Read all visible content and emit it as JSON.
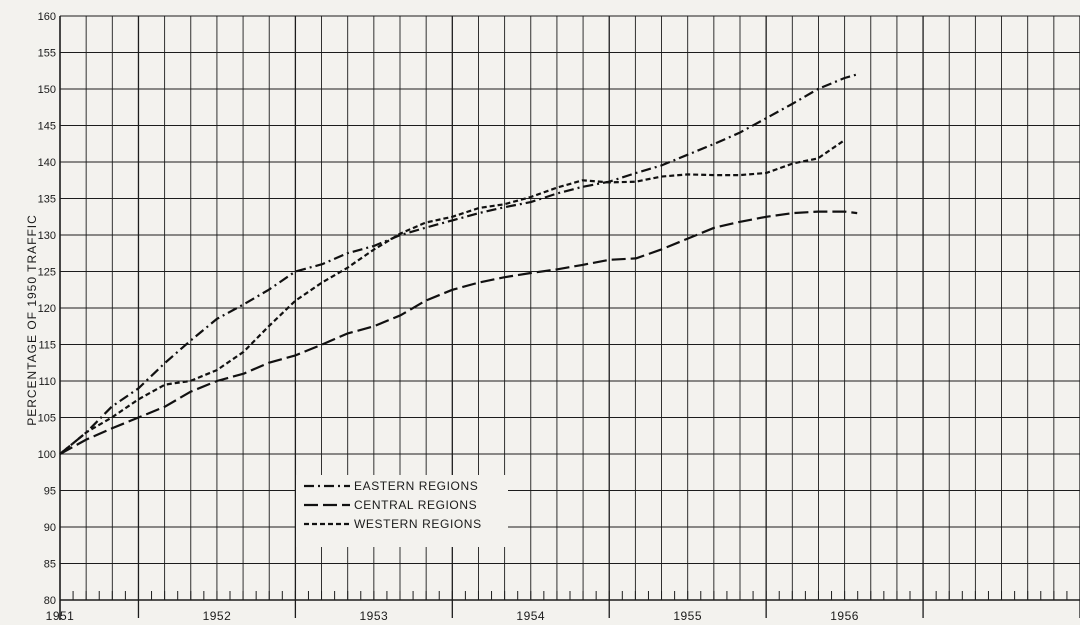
{
  "chart_data": {
    "type": "line",
    "title": "",
    "xlabel": "",
    "ylabel": "PERCENTAGE OF 1950 TRAFFIC",
    "ylim": [
      80,
      160
    ],
    "yticks": [
      "80",
      "85",
      "90",
      "95",
      "100",
      "105",
      "110",
      "115",
      "120",
      "125",
      "130",
      "135",
      "140",
      "145",
      "150",
      "155",
      "160"
    ],
    "xlim": [
      1950.5,
      1957.0
    ],
    "year_labels": [
      "1951",
      "1952",
      "1953",
      "1954",
      "1955",
      "1956"
    ],
    "grid": true,
    "legend_placement": "lower-left",
    "series": [
      {
        "name": "EASTERN REGIONS",
        "style": "dashdot",
        "points": [
          [
            1950.5,
            100
          ],
          [
            1950.67,
            103
          ],
          [
            1950.83,
            106.5
          ],
          [
            1951.0,
            109
          ],
          [
            1951.17,
            112.5
          ],
          [
            1951.33,
            115.5
          ],
          [
            1951.5,
            118.5
          ],
          [
            1951.67,
            120.5
          ],
          [
            1951.83,
            122.5
          ],
          [
            1952.0,
            125
          ],
          [
            1952.17,
            126
          ],
          [
            1952.33,
            127.5
          ],
          [
            1952.5,
            128.5
          ],
          [
            1952.67,
            130
          ],
          [
            1952.83,
            131
          ],
          [
            1953.0,
            132
          ],
          [
            1953.17,
            133
          ],
          [
            1953.33,
            133.8
          ],
          [
            1953.5,
            134.5
          ],
          [
            1953.67,
            135.7
          ],
          [
            1953.83,
            136.6
          ],
          [
            1954.0,
            137.3
          ],
          [
            1954.17,
            138.5
          ],
          [
            1954.33,
            139.5
          ],
          [
            1954.5,
            141
          ],
          [
            1954.67,
            142.5
          ],
          [
            1954.83,
            144
          ],
          [
            1955.0,
            146
          ],
          [
            1955.17,
            148
          ],
          [
            1955.33,
            150
          ],
          [
            1955.5,
            151.5
          ],
          [
            1955.58,
            152
          ]
        ]
      },
      {
        "name": "CENTRAL REGIONS",
        "style": "longdash",
        "points": [
          [
            1950.5,
            100
          ],
          [
            1950.67,
            102
          ],
          [
            1950.83,
            103.5
          ],
          [
            1951.0,
            105
          ],
          [
            1951.17,
            106.5
          ],
          [
            1951.33,
            108.5
          ],
          [
            1951.5,
            110
          ],
          [
            1951.67,
            111
          ],
          [
            1951.83,
            112.5
          ],
          [
            1952.0,
            113.5
          ],
          [
            1952.17,
            115
          ],
          [
            1952.33,
            116.5
          ],
          [
            1952.5,
            117.5
          ],
          [
            1952.67,
            119
          ],
          [
            1952.83,
            121
          ],
          [
            1953.0,
            122.5
          ],
          [
            1953.17,
            123.5
          ],
          [
            1953.33,
            124.2
          ],
          [
            1953.5,
            124.8
          ],
          [
            1953.67,
            125.3
          ],
          [
            1953.83,
            125.9
          ],
          [
            1954.0,
            126.6
          ],
          [
            1954.17,
            126.8
          ],
          [
            1954.33,
            128
          ],
          [
            1954.5,
            129.5
          ],
          [
            1954.67,
            131
          ],
          [
            1954.83,
            131.8
          ],
          [
            1955.0,
            132.5
          ],
          [
            1955.17,
            133
          ],
          [
            1955.33,
            133.2
          ],
          [
            1955.5,
            133.2
          ],
          [
            1955.58,
            133
          ]
        ]
      },
      {
        "name": "WESTERN REGIONS",
        "style": "shortdash",
        "points": [
          [
            1950.5,
            100
          ],
          [
            1950.67,
            103
          ],
          [
            1950.83,
            105
          ],
          [
            1951.0,
            107.5
          ],
          [
            1951.17,
            109.5
          ],
          [
            1951.33,
            110
          ],
          [
            1951.5,
            111.5
          ],
          [
            1951.67,
            114
          ],
          [
            1951.83,
            117.5
          ],
          [
            1952.0,
            121
          ],
          [
            1952.17,
            123.5
          ],
          [
            1952.33,
            125.5
          ],
          [
            1952.5,
            128
          ],
          [
            1952.67,
            130.2
          ],
          [
            1952.83,
            131.7
          ],
          [
            1953.0,
            132.5
          ],
          [
            1953.17,
            133.7
          ],
          [
            1953.33,
            134.2
          ],
          [
            1953.5,
            135.2
          ],
          [
            1953.67,
            136.5
          ],
          [
            1953.83,
            137.5
          ],
          [
            1954.0,
            137.2
          ],
          [
            1954.17,
            137.3
          ],
          [
            1954.33,
            138
          ],
          [
            1954.5,
            138.3
          ],
          [
            1954.67,
            138.2
          ],
          [
            1954.83,
            138.2
          ],
          [
            1955.0,
            138.5
          ],
          [
            1955.17,
            139.8
          ],
          [
            1955.33,
            140.5
          ],
          [
            1955.5,
            143
          ]
        ]
      }
    ]
  }
}
